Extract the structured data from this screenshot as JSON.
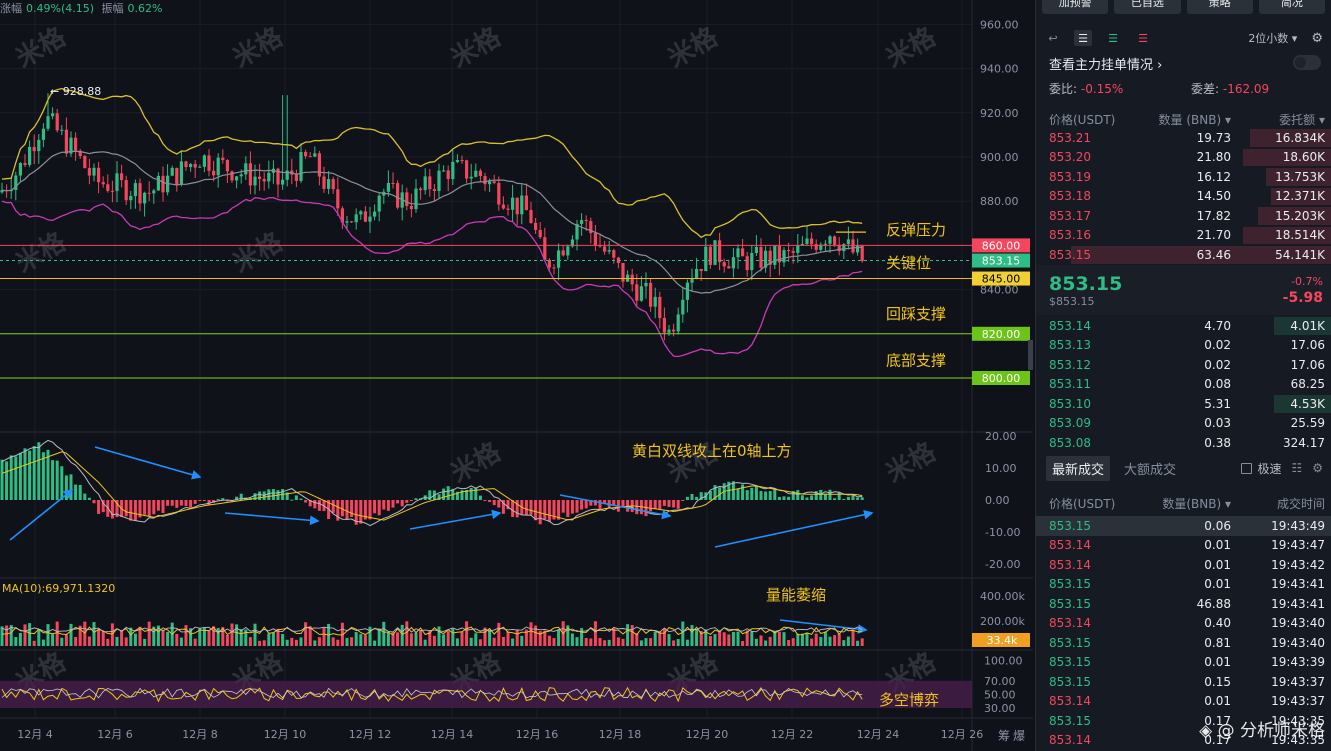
{
  "topbar": {
    "change_label": "涨幅",
    "change_value": "0.49%(4.15)",
    "amp_label": "振幅",
    "amp_value": "0.62%"
  },
  "watermark_text": "米格",
  "price_axis": [
    "960.00",
    "940.00",
    "920.00",
    "900.00",
    "880.00",
    "840.00"
  ],
  "price_tags": {
    "resist": "860.00",
    "last": "853.15",
    "key": "845.00",
    "s1": "820.00",
    "s2": "800.00"
  },
  "high_label": "928.88",
  "annotations": {
    "resist": "反弹压力",
    "key": "关键位",
    "s1": "回踩支撑",
    "s2": "底部支撑",
    "macd": "黄白双线攻上在0轴上方",
    "vol": "量能萎缩",
    "rsi": "多空博弈"
  },
  "macd_axis": [
    "20.00",
    "10.00",
    "0.00",
    "-10.00",
    "-20.00"
  ],
  "vol_label": "MA(10):69,971.1320",
  "vol_axis": [
    "400.00k",
    "200.00k"
  ],
  "vol_tag": "33.4k",
  "rsi_axis": [
    "100.00",
    "70.00",
    "50.00",
    "30.00"
  ],
  "dates": [
    "12月 4",
    "12月 6",
    "12月 8",
    "12月 10",
    "12月 12",
    "12月 14",
    "12月 16",
    "12月 18",
    "12月 20",
    "12月 22",
    "12月 24",
    "12月 26"
  ],
  "axis_corner": [
    "筹",
    "爆"
  ],
  "panel": {
    "top_buttons": [
      "加预警",
      "已自选",
      "策略",
      "简况"
    ],
    "precision": "2位小数",
    "depth_link": "查看主力挂单情况",
    "ratio_label": "委比:",
    "ratio_value": "-0.15%",
    "diff_label": "委差:",
    "diff_value": "-162.09",
    "book_headers": [
      "价格(USDT)",
      "数量 (BNB)",
      "委托额"
    ],
    "asks": [
      {
        "p": "853.21",
        "q": "19.73",
        "t": "16.834K",
        "w": 0.31
      },
      {
        "p": "853.20",
        "q": "21.80",
        "t": "18.60K",
        "w": 0.34
      },
      {
        "p": "853.19",
        "q": "16.12",
        "t": "13.753K",
        "w": 0.25
      },
      {
        "p": "853.18",
        "q": "14.50",
        "t": "12.371K",
        "w": 0.23
      },
      {
        "p": "853.17",
        "q": "17.82",
        "t": "15.203K",
        "w": 0.28
      },
      {
        "p": "853.16",
        "q": "21.70",
        "t": "18.514K",
        "w": 0.34
      },
      {
        "p": "853.15",
        "q": "63.46",
        "t": "54.141K",
        "w": 1.0
      }
    ],
    "last_price": "853.15",
    "last_sub": "$853.15",
    "last_pct": "-0.7%",
    "last_change": "-5.98",
    "bids": [
      {
        "p": "853.14",
        "q": "4.70",
        "t": "4.01K",
        "w": 0.22
      },
      {
        "p": "853.13",
        "q": "0.02",
        "t": "17.06",
        "w": 0
      },
      {
        "p": "853.12",
        "q": "0.02",
        "t": "17.06",
        "w": 0
      },
      {
        "p": "853.11",
        "q": "0.08",
        "t": "68.25",
        "w": 0
      },
      {
        "p": "853.10",
        "q": "5.31",
        "t": "4.53K",
        "w": 0.22
      },
      {
        "p": "853.09",
        "q": "0.03",
        "t": "25.59",
        "w": 0
      },
      {
        "p": "853.08",
        "q": "0.38",
        "t": "324.17",
        "w": 0
      }
    ],
    "tab_latest": "最新成交",
    "tab_large": "大额成交",
    "check_label": "极速",
    "trade_headers": [
      "价格(USDT)",
      "数量(BNB)",
      "成交时间"
    ],
    "trades": [
      {
        "p": "853.15",
        "q": "0.06",
        "t": "19:43:49",
        "s": "g"
      },
      {
        "p": "853.14",
        "q": "0.01",
        "t": "19:43:47",
        "s": "r"
      },
      {
        "p": "853.14",
        "q": "0.01",
        "t": "19:43:42",
        "s": "r"
      },
      {
        "p": "853.15",
        "q": "0.01",
        "t": "19:43:41",
        "s": "g"
      },
      {
        "p": "853.15",
        "q": "46.88",
        "t": "19:43:41",
        "s": "g"
      },
      {
        "p": "853.14",
        "q": "0.40",
        "t": "19:43:40",
        "s": "r"
      },
      {
        "p": "853.15",
        "q": "0.81",
        "t": "19:43:40",
        "s": "g"
      },
      {
        "p": "853.15",
        "q": "0.01",
        "t": "19:43:39",
        "s": "g"
      },
      {
        "p": "853.15",
        "q": "0.15",
        "t": "19:43:37",
        "s": "g"
      },
      {
        "p": "853.14",
        "q": "0.01",
        "t": "19:43:37",
        "s": "r"
      },
      {
        "p": "853.15",
        "q": "0.17",
        "t": "19:43:35",
        "s": "g"
      },
      {
        "p": "853.14",
        "q": "0.17",
        "t": "19:43:35",
        "s": "r"
      }
    ],
    "brand": "分析师米格"
  },
  "colors": {
    "up": "#2ebd85",
    "down": "#f6465d",
    "bg": "#10121a",
    "boll_upper": "#d8c12b",
    "boll_lower": "#c83ab6",
    "ma": "#8a8f99"
  }
}
